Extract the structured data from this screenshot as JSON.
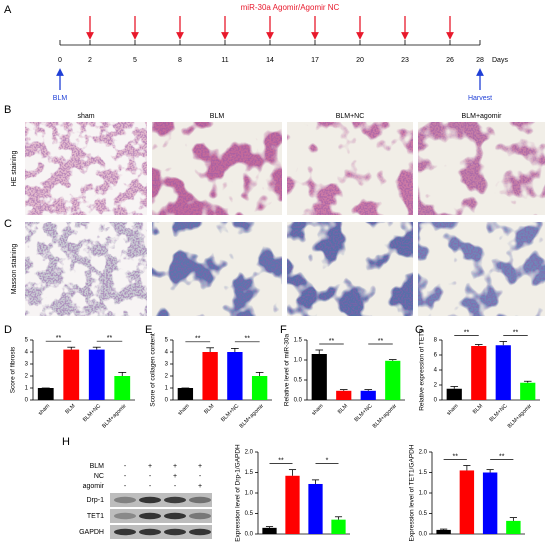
{
  "timeline": {
    "letter": "A",
    "treatment": "miR-30a Agomir/Agomir NC",
    "days": [
      0,
      2,
      5,
      8,
      11,
      14,
      17,
      20,
      23,
      26,
      28
    ],
    "unit": "Days",
    "start_event": "BLM",
    "end_event": "Harvest"
  },
  "staining": {
    "letters": [
      "B",
      "C"
    ],
    "groups": [
      "sham",
      "BLM",
      "BLM+NC",
      "BLM+agomir"
    ],
    "rows": [
      "HE staining",
      "Masson staining"
    ]
  },
  "blot": {
    "letter": "H",
    "treatments": [
      {
        "name": "BLM",
        "signs": [
          "-",
          "+",
          "+",
          "+"
        ]
      },
      {
        "name": "NC",
        "signs": [
          "-",
          "-",
          "+",
          "-"
        ]
      },
      {
        "name": "agomir",
        "signs": [
          "-",
          "-",
          "-",
          "+"
        ]
      }
    ],
    "proteins": [
      "Drp-1",
      "TET1",
      "GAPDH"
    ]
  },
  "chart_data": [
    {
      "type": "bar",
      "letter": "D",
      "ylabel": "Score of fibrosis",
      "categories": [
        "sham",
        "BLM",
        "BLM+NC",
        "BLM+agomir"
      ],
      "values": [
        1,
        4.2,
        4.2,
        2.0
      ],
      "errors": [
        0,
        0.2,
        0.2,
        0.3
      ],
      "colors": [
        "#000000",
        "#ff0000",
        "#0000ff",
        "#00ff00"
      ],
      "ylim": [
        0,
        5
      ],
      "yticks": [
        0,
        1,
        2,
        3,
        4,
        5
      ],
      "significance": [
        "**",
        "**"
      ]
    },
    {
      "type": "bar",
      "letter": "E",
      "ylabel": "Score of collagen content",
      "categories": [
        "sham",
        "BLM",
        "BLM+NC",
        "BLM+agomir"
      ],
      "values": [
        1,
        4.0,
        4.0,
        2.0
      ],
      "errors": [
        0,
        0.35,
        0.3,
        0.3
      ],
      "colors": [
        "#000000",
        "#ff0000",
        "#0000ff",
        "#00ff00"
      ],
      "ylim": [
        0,
        5
      ],
      "yticks": [
        0,
        1,
        2,
        3,
        4,
        5
      ],
      "significance": [
        "**",
        "**"
      ]
    },
    {
      "type": "bar",
      "letter": "F",
      "ylabel": "Relative level of miR-30a",
      "categories": [
        "sham",
        "BLM",
        "BLM+NC",
        "BLM+agomir"
      ],
      "values": [
        1.15,
        0.23,
        0.23,
        0.98
      ],
      "errors": [
        0.1,
        0.03,
        0.03,
        0.03
      ],
      "colors": [
        "#000000",
        "#ff0000",
        "#0000ff",
        "#00ff00"
      ],
      "ylim": [
        0,
        1.5
      ],
      "yticks": [
        {
          "value": 0,
          "label": "0.0"
        },
        0.5,
        {
          "value": 1,
          "label": "1.0"
        },
        1.5
      ],
      "significance": [
        "**",
        "**"
      ]
    },
    {
      "type": "bar",
      "letter": "G",
      "ylabel": "Relative expression of TET1",
      "categories": [
        "sham",
        "BLM",
        "BLM+NC",
        "BLM+agomir"
      ],
      "values": [
        1.5,
        7.2,
        7.3,
        2.3
      ],
      "errors": [
        0.3,
        0.2,
        0.5,
        0.2
      ],
      "colors": [
        "#000000",
        "#ff0000",
        "#0000ff",
        "#00ff00"
      ],
      "ylim": [
        0,
        8
      ],
      "yticks": [
        0,
        2,
        4,
        6,
        8
      ],
      "significance": [
        "**",
        "**"
      ]
    },
    {
      "type": "bar",
      "ylabel": "Expression level of Drp-1/GAPDH",
      "values": [
        0.15,
        1.42,
        1.22,
        0.35
      ],
      "errors": [
        0.03,
        0.15,
        0.1,
        0.07
      ],
      "colors": [
        "#000000",
        "#ff0000",
        "#0000ff",
        "#00ff00"
      ],
      "ylim": [
        0,
        2
      ],
      "yticks": [
        {
          "value": 0,
          "label": "0.0"
        },
        0.5,
        {
          "value": 1,
          "label": "1.0"
        },
        1.5,
        {
          "value": 2,
          "label": "2.0"
        }
      ],
      "significance": [
        "**",
        "*"
      ]
    },
    {
      "type": "bar",
      "ylabel": "Expression level of TET1/GAPDH",
      "values": [
        0.1,
        1.55,
        1.5,
        0.32
      ],
      "errors": [
        0.02,
        0.12,
        0.07,
        0.08
      ],
      "colors": [
        "#000000",
        "#ff0000",
        "#0000ff",
        "#00ff00"
      ],
      "ylim": [
        0,
        2
      ],
      "yticks": [
        {
          "value": 0,
          "label": "0.0"
        },
        0.5,
        {
          "value": 1,
          "label": "1.0"
        },
        1.5,
        {
          "value": 2,
          "label": "2.0"
        }
      ],
      "significance": [
        "**",
        "**"
      ]
    }
  ]
}
